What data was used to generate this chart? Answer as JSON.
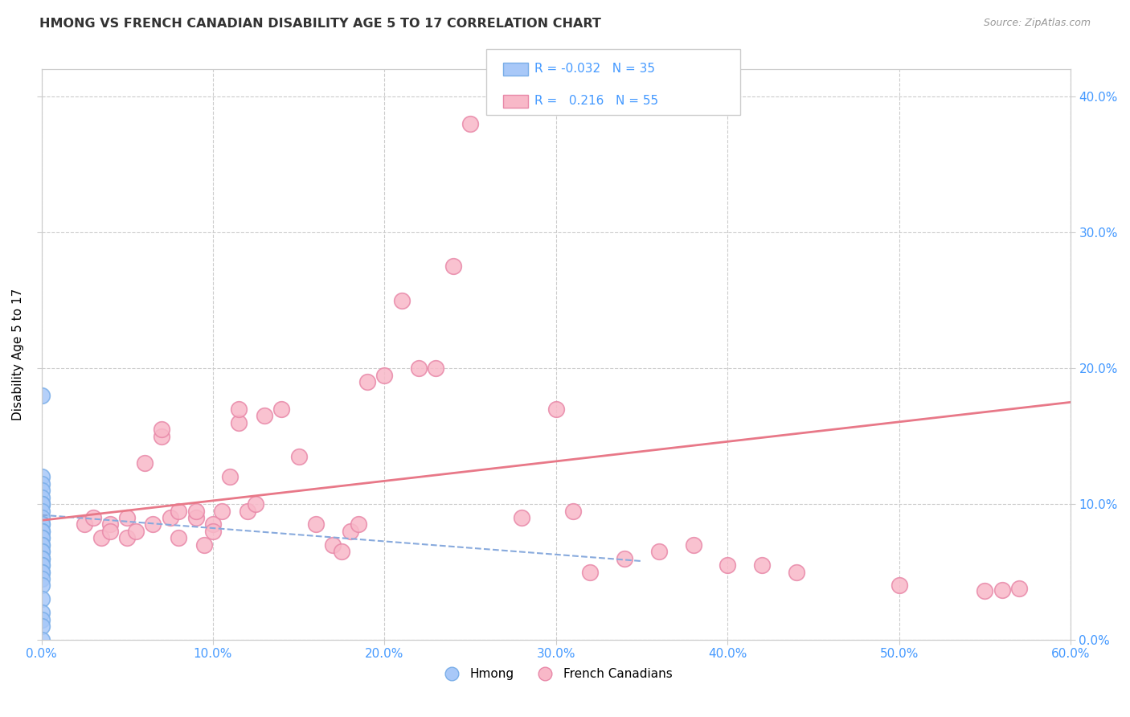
{
  "title": "HMONG VS FRENCH CANADIAN DISABILITY AGE 5 TO 17 CORRELATION CHART",
  "source": "Source: ZipAtlas.com",
  "ylabel": "Disability Age 5 to 17",
  "xmin": 0.0,
  "xmax": 0.6,
  "ymin": 0.0,
  "ymax": 0.42,
  "hmong_R": "-0.032",
  "hmong_N": "35",
  "fc_R": "0.216",
  "fc_N": "55",
  "hmong_color": "#a8c8f8",
  "hmong_edge": "#7aaee8",
  "fc_color": "#f8b8c8",
  "fc_edge": "#e888a8",
  "trendline_hmong_color": "#88aadd",
  "trendline_fc_color": "#e87888",
  "grid_color": "#cccccc",
  "axis_label_color": "#4499ff",
  "hmong_points_x": [
    0.0,
    0.0,
    0.0,
    0.0,
    0.0,
    0.0,
    0.0,
    0.0,
    0.0,
    0.0,
    0.0,
    0.0,
    0.0,
    0.0,
    0.0,
    0.0,
    0.0,
    0.0,
    0.0,
    0.0,
    0.0,
    0.0,
    0.0,
    0.0,
    0.0,
    0.0,
    0.0,
    0.0,
    0.0,
    0.0,
    0.0,
    0.0,
    0.0,
    0.0,
    0.0
  ],
  "hmong_points_y": [
    0.18,
    0.12,
    0.115,
    0.11,
    0.105,
    0.1,
    0.1,
    0.1,
    0.095,
    0.09,
    0.085,
    0.085,
    0.08,
    0.08,
    0.08,
    0.075,
    0.075,
    0.07,
    0.07,
    0.065,
    0.065,
    0.06,
    0.06,
    0.06,
    0.055,
    0.055,
    0.05,
    0.05,
    0.045,
    0.04,
    0.03,
    0.02,
    0.015,
    0.01,
    0.0
  ],
  "fc_points_x": [
    0.025,
    0.03,
    0.035,
    0.04,
    0.04,
    0.05,
    0.05,
    0.055,
    0.06,
    0.065,
    0.07,
    0.07,
    0.075,
    0.08,
    0.08,
    0.09,
    0.09,
    0.095,
    0.1,
    0.1,
    0.105,
    0.11,
    0.115,
    0.115,
    0.12,
    0.125,
    0.13,
    0.14,
    0.15,
    0.16,
    0.17,
    0.175,
    0.18,
    0.185,
    0.19,
    0.2,
    0.21,
    0.22,
    0.23,
    0.24,
    0.25,
    0.28,
    0.3,
    0.31,
    0.32,
    0.34,
    0.36,
    0.38,
    0.4,
    0.42,
    0.44,
    0.5,
    0.55,
    0.56,
    0.57
  ],
  "fc_points_y": [
    0.085,
    0.09,
    0.075,
    0.085,
    0.08,
    0.09,
    0.075,
    0.08,
    0.13,
    0.085,
    0.15,
    0.155,
    0.09,
    0.095,
    0.075,
    0.09,
    0.095,
    0.07,
    0.085,
    0.08,
    0.095,
    0.12,
    0.16,
    0.17,
    0.095,
    0.1,
    0.165,
    0.17,
    0.135,
    0.085,
    0.07,
    0.065,
    0.08,
    0.085,
    0.19,
    0.195,
    0.25,
    0.2,
    0.2,
    0.275,
    0.38,
    0.09,
    0.17,
    0.095,
    0.05,
    0.06,
    0.065,
    0.07,
    0.055,
    0.055,
    0.05,
    0.04,
    0.036,
    0.037,
    0.038
  ],
  "xtick_labels": [
    "0.0%",
    "10.0%",
    "20.0%",
    "30.0%",
    "40.0%",
    "50.0%",
    "60.0%"
  ],
  "ytick_labels_right": [
    "0.0%",
    "10.0%",
    "20.0%",
    "30.0%",
    "40.0%"
  ],
  "ytick_positions": [
    0.0,
    0.1,
    0.2,
    0.3,
    0.4
  ],
  "xtick_positions": [
    0.0,
    0.1,
    0.2,
    0.3,
    0.4,
    0.5,
    0.6
  ],
  "hmong_trend_x": [
    0.0,
    0.35
  ],
  "hmong_trend_y": [
    0.092,
    0.058
  ],
  "fc_trend_x": [
    0.0,
    0.6
  ],
  "fc_trend_y": [
    0.088,
    0.175
  ]
}
